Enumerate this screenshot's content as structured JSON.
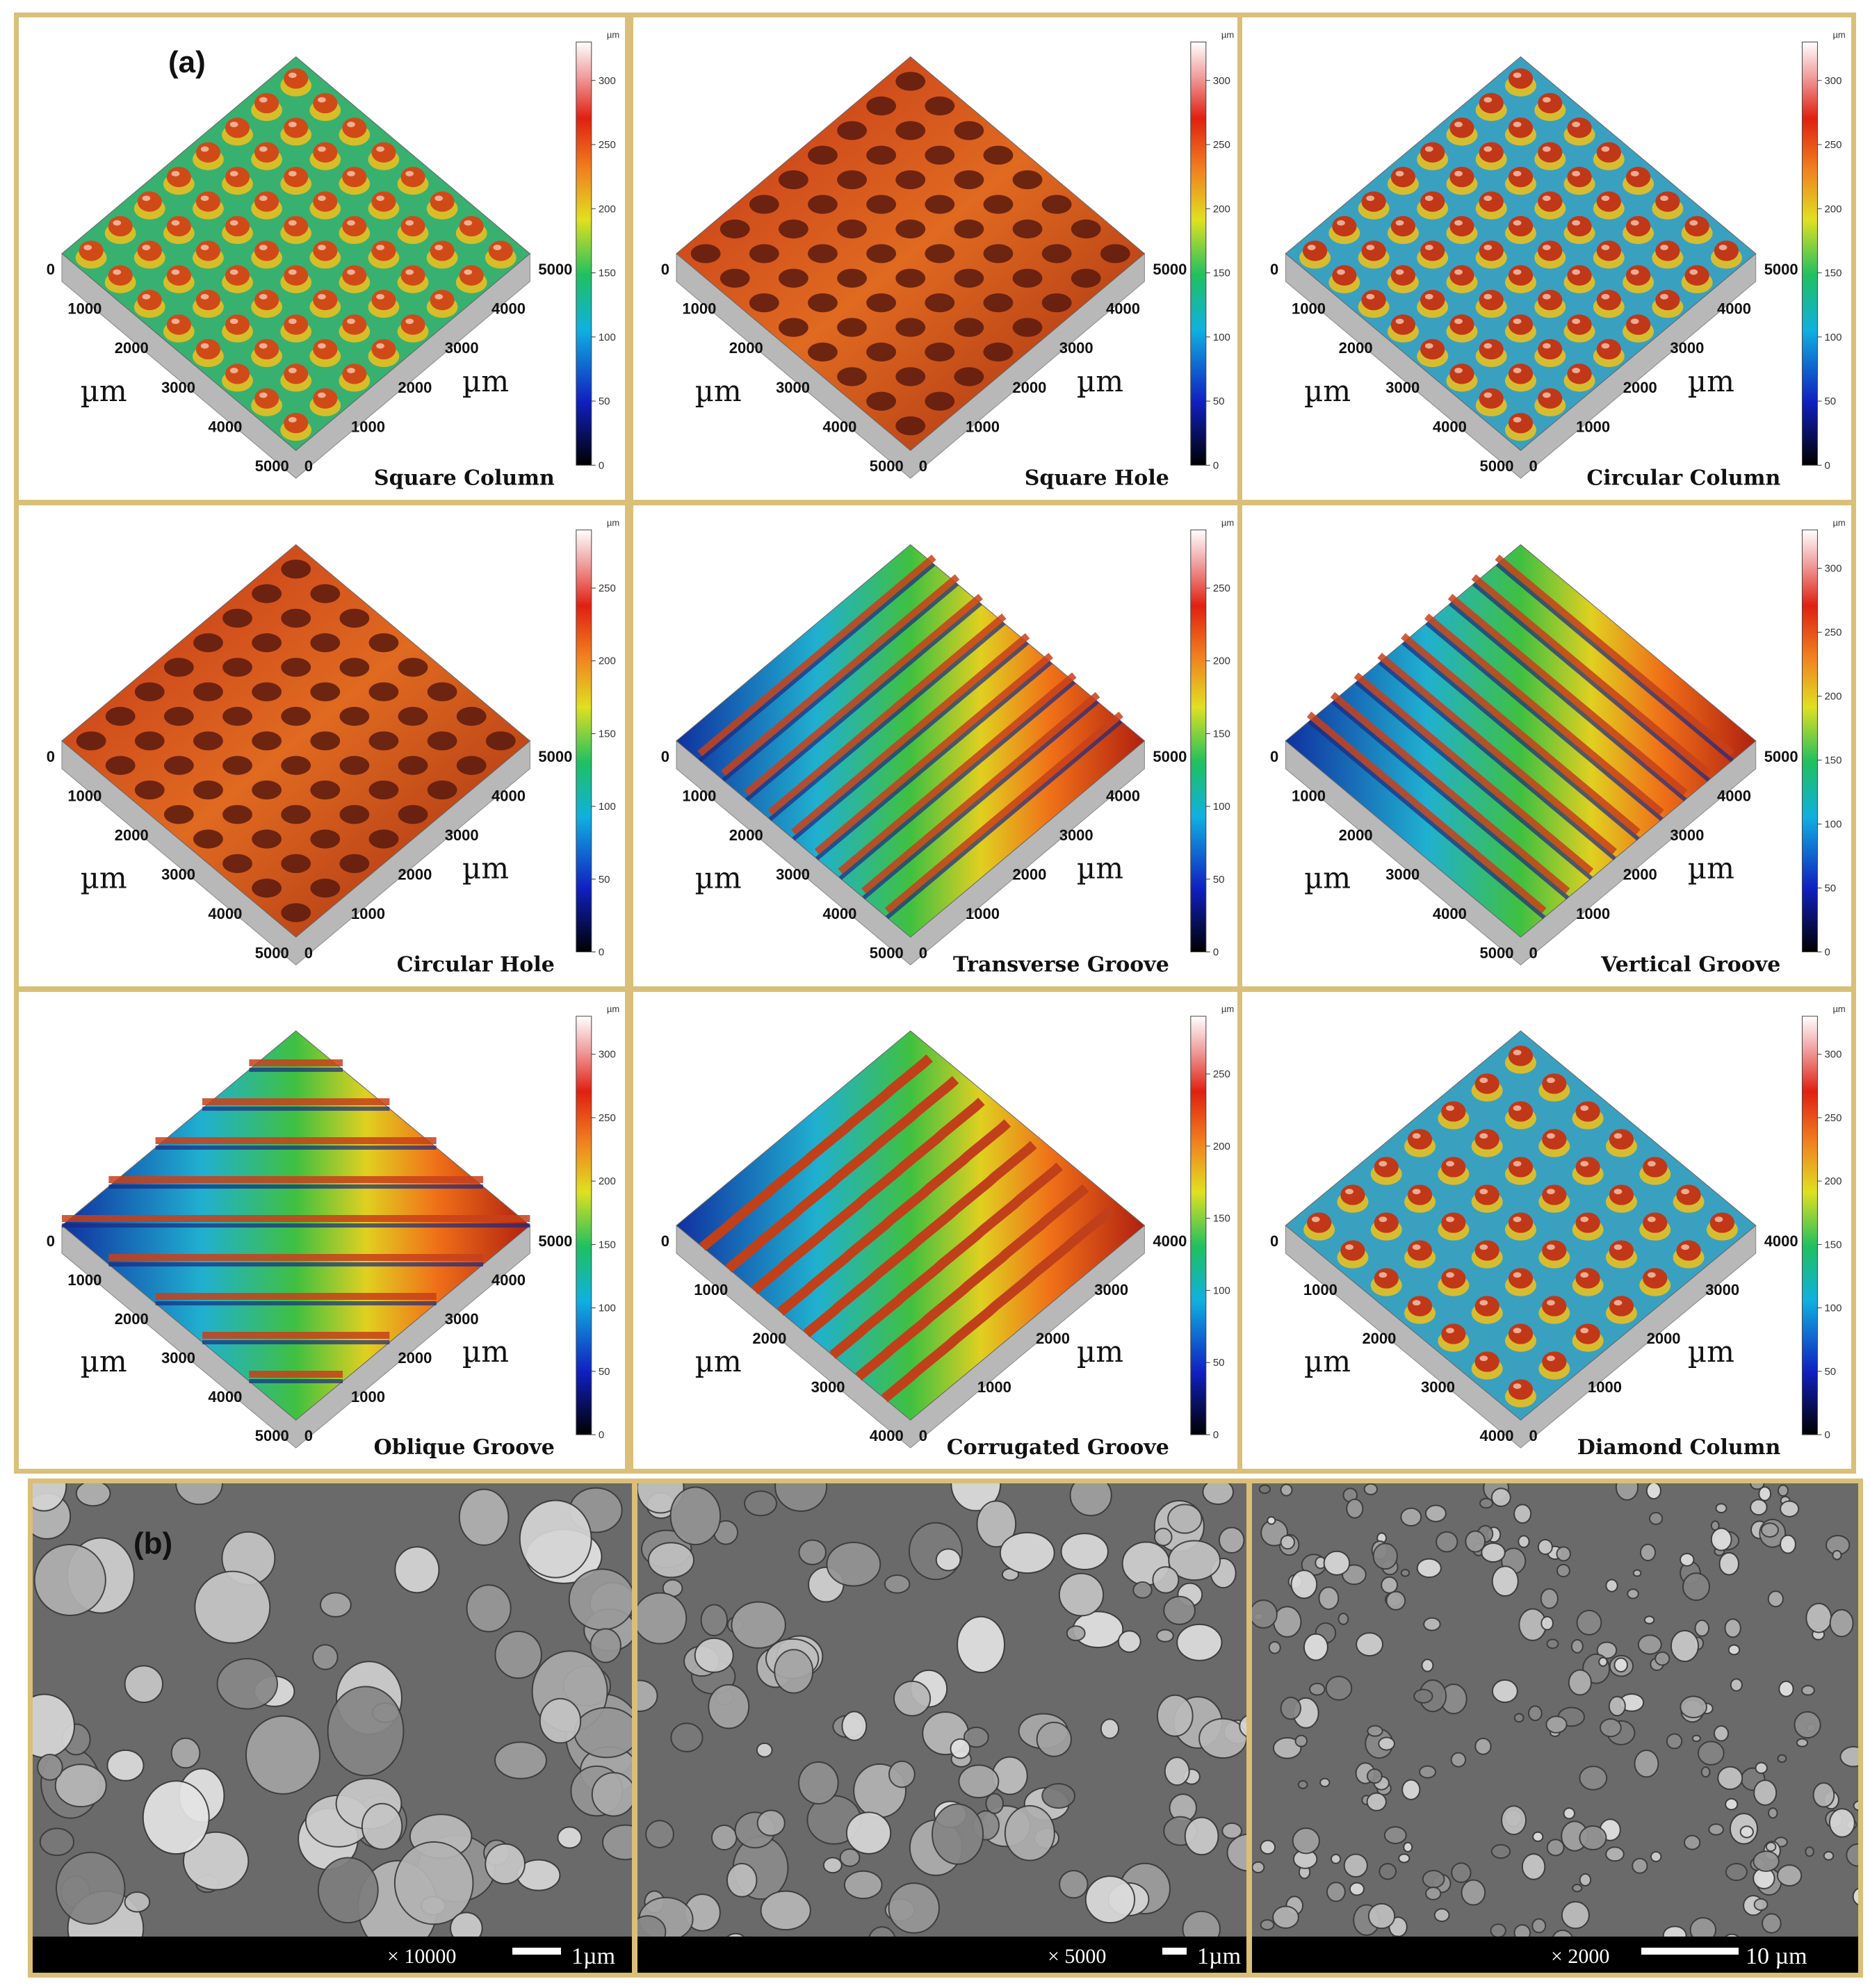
{
  "figure": {
    "part_a_label": "(a)",
    "part_b_label": "(b)"
  },
  "colorbar_unit": "µm",
  "axis_unit": "µm",
  "panels": [
    {
      "title": "Square  Column",
      "kind": "column-square",
      "left_ticks": [
        "0",
        "1000",
        "2000",
        "3000",
        "4000",
        "5000"
      ],
      "right_ticks": [
        "0",
        "1000",
        "2000",
        "3000",
        "4000",
        "5000"
      ],
      "scale": [
        "0",
        "50",
        "100",
        "150",
        "200",
        "250",
        "300"
      ]
    },
    {
      "title": "Square Hole",
      "kind": "hole-square",
      "left_ticks": [
        "0",
        "1000",
        "2000",
        "3000",
        "4000",
        "5000"
      ],
      "right_ticks": [
        "0",
        "1000",
        "2000",
        "3000",
        "4000",
        "5000"
      ],
      "scale": [
        "0",
        "50",
        "100",
        "150",
        "200",
        "250",
        "300"
      ]
    },
    {
      "title": "Circular Column",
      "kind": "column-circle",
      "left_ticks": [
        "0",
        "1000",
        "2000",
        "3000",
        "4000",
        "5000"
      ],
      "right_ticks": [
        "0",
        "1000",
        "2000",
        "3000",
        "4000",
        "5000"
      ],
      "scale": [
        "0",
        "50",
        "100",
        "150",
        "200",
        "250",
        "300"
      ]
    },
    {
      "title": "Circular Hole",
      "kind": "hole-circle",
      "left_ticks": [
        "0",
        "1000",
        "2000",
        "3000",
        "4000",
        "5000"
      ],
      "right_ticks": [
        "0",
        "1000",
        "2000",
        "3000",
        "4000",
        "5000"
      ],
      "scale": [
        "0",
        "50",
        "100",
        "150",
        "200",
        "250"
      ]
    },
    {
      "title": "Transverse Groove",
      "kind": "groove-transverse",
      "left_ticks": [
        "0",
        "1000",
        "2000",
        "3000",
        "4000",
        "5000"
      ],
      "right_ticks": [
        "0",
        "1000",
        "2000",
        "3000",
        "4000",
        "5000"
      ],
      "scale": [
        "0",
        "50",
        "100",
        "150",
        "200",
        "250"
      ]
    },
    {
      "title": "Vertical Groove",
      "kind": "groove-vertical",
      "left_ticks": [
        "0",
        "1000",
        "2000",
        "3000",
        "4000",
        "5000"
      ],
      "right_ticks": [
        "0",
        "1000",
        "2000",
        "3000",
        "4000",
        "5000"
      ],
      "scale": [
        "0",
        "50",
        "100",
        "150",
        "200",
        "250",
        "300"
      ]
    },
    {
      "title": "Oblique Groove",
      "kind": "groove-oblique",
      "left_ticks": [
        "0",
        "1000",
        "2000",
        "3000",
        "4000",
        "5000"
      ],
      "right_ticks": [
        "0",
        "1000",
        "2000",
        "3000",
        "4000",
        "5000"
      ],
      "scale": [
        "0",
        "50",
        "100",
        "150",
        "200",
        "250",
        "300"
      ]
    },
    {
      "title": "Corrugated Groove",
      "kind": "groove-corrugated",
      "left_ticks": [
        "0",
        "1000",
        "2000",
        "3000",
        "4000"
      ],
      "right_ticks": [
        "0",
        "1000",
        "2000",
        "3000",
        "4000"
      ],
      "scale": [
        "0",
        "50",
        "100",
        "150",
        "200",
        "250"
      ]
    },
    {
      "title": "Diamond Column",
      "kind": "column-diamond",
      "left_ticks": [
        "0",
        "1000",
        "2000",
        "3000",
        "4000"
      ],
      "right_ticks": [
        "0",
        "1000",
        "2000",
        "3000",
        "4000"
      ],
      "scale": [
        "0",
        "50",
        "100",
        "150",
        "200",
        "250",
        "300"
      ]
    }
  ],
  "sem": [
    {
      "magnification": "× 10000",
      "scale_label": "1µm"
    },
    {
      "magnification": "× 5000",
      "scale_label": "1µm"
    },
    {
      "magnification": "× 2000",
      "scale_label": "10 µm"
    }
  ]
}
